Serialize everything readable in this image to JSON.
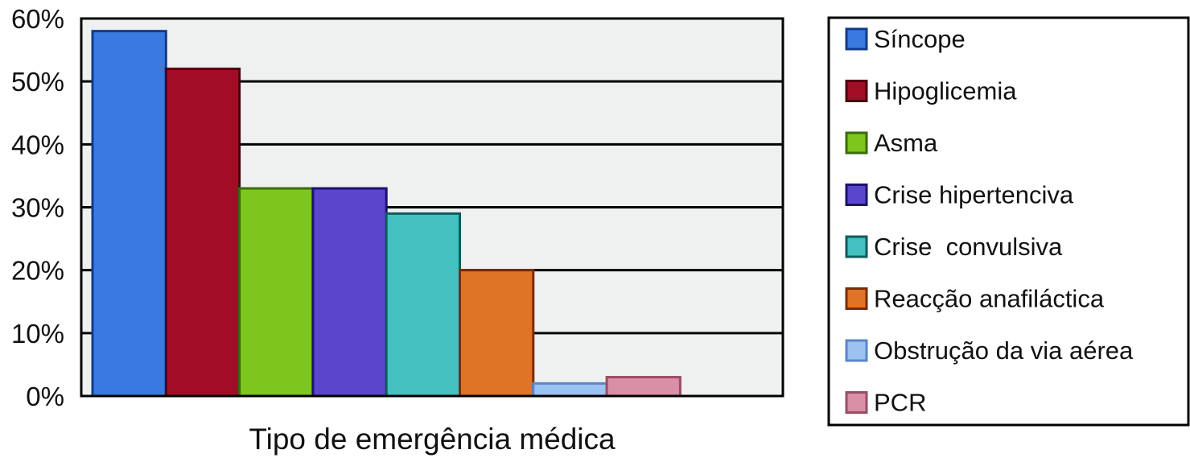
{
  "chart_data": {
    "type": "bar",
    "title": "",
    "xlabel": "Tipo de emergência médica",
    "ylabel": "",
    "ylim": [
      0,
      60
    ],
    "yticks": [
      "0%",
      "10%",
      "20%",
      "30%",
      "40%",
      "50%",
      "60%"
    ],
    "ytick_values": [
      0,
      10,
      20,
      30,
      40,
      50,
      60
    ],
    "grid": true,
    "legend_position": "right",
    "categories": [
      "Síncope",
      "Hipoglicemia",
      "Asma",
      "Crise hipertenciva",
      "Crise  convulsiva",
      "Reacção anafiláctica",
      "Obstrução da via aérea",
      "PCR"
    ],
    "values": [
      58,
      52,
      33,
      33,
      29,
      20,
      2,
      3
    ],
    "colors": [
      "#3a7ae0",
      "#a10d24",
      "#7cc61d",
      "#5a45cc",
      "#45c0c0",
      "#e07426",
      "#9cc2f2",
      "#d98fa6"
    ],
    "border_colors": [
      "#123b8a",
      "#4a0410",
      "#3b6b0a",
      "#1c1270",
      "#0f5b5b",
      "#7a2b05",
      "#5b85c7",
      "#9b4d63"
    ],
    "plot_background": "#eef1ef"
  }
}
